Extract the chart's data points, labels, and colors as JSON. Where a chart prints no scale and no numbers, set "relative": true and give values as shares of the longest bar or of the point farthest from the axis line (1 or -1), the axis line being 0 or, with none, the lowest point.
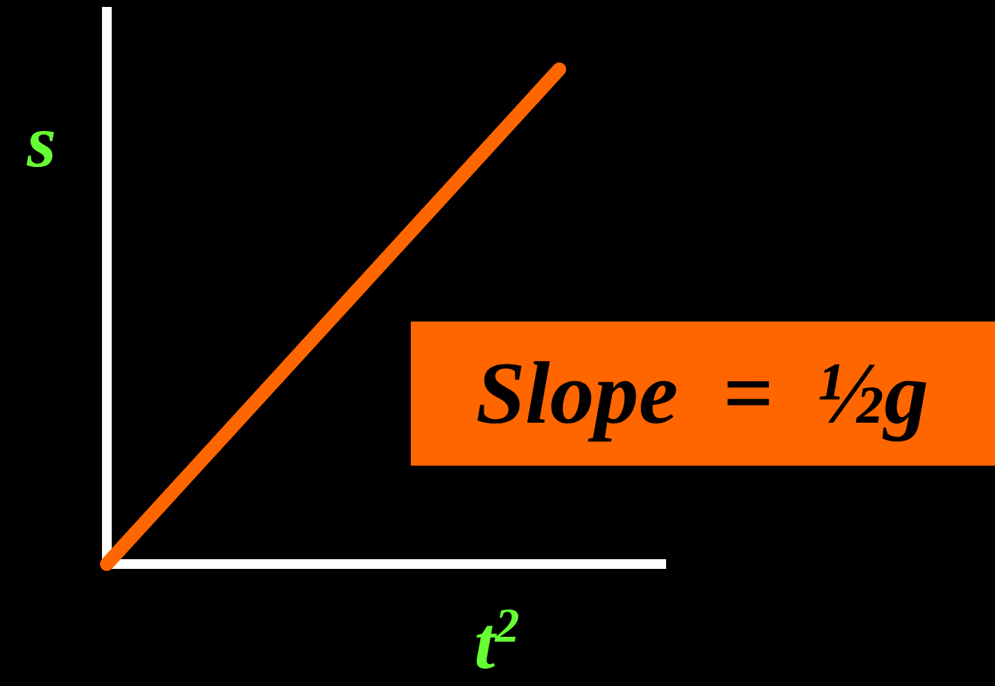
{
  "chart_data": {
    "type": "line",
    "xlabel": "t$^{2}$",
    "ylabel": "s",
    "categories": [
      null,
      null
    ],
    "relative": true,
    "series": [
      {
        "color": "#ff6600",
        "values": [
          0,
          1
        ]
      }
    ],
    "annotations": [
      "Slope  =  ½g"
    ],
    "grid": false,
    "legend": false
  }
}
